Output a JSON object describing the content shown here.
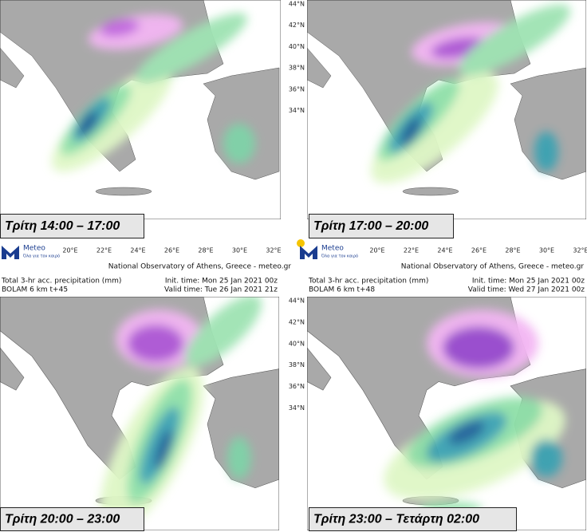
{
  "panels": [
    {
      "label": "Τρίτη 14:00 – 17:00",
      "lon_labels": [
        "20°E",
        "22°E",
        "24°E",
        "26°E",
        "28°E",
        "30°E",
        "32°E"
      ],
      "logo": {
        "name": "Meteo",
        "tagline": "Όλα για τον καιρό"
      },
      "source": "National Observatory of Athens, Greece - meteo.gr"
    },
    {
      "label": "Τρίτη 17:00 – 20:00",
      "lat_labels": [
        "44°N",
        "42°N",
        "40°N",
        "38°N",
        "36°N",
        "34°N"
      ],
      "lon_labels": [
        "20°E",
        "22°E",
        "24°E",
        "26°E",
        "28°E",
        "30°E",
        "32°E"
      ],
      "logo": {
        "name": "Meteo",
        "tagline": "Όλα για τον καιρό"
      },
      "source": "National Observatory of Athens, Greece - meteo.gr"
    },
    {
      "label": "Τρίτη 20:00 – 23:00",
      "header": {
        "product": "Total 3-hr acc. precipitation (mm)",
        "model": "BOLAM 6 km t+45",
        "init": "Init. time: Mon 25 Jan 2021 00z",
        "valid": "Valid time: Tue 26 Jan 2021 21z"
      }
    },
    {
      "label": "Τρίτη 23:00 –  Τετάρτη 02:00",
      "lat_labels": [
        "44°N",
        "42°N",
        "40°N",
        "38°N",
        "36°N",
        "34°N"
      ],
      "header": {
        "product": "Total 3-hr acc. precipitation (mm)",
        "model": "BOLAM 6 km t+48",
        "init": "Init. time: Mon 25 Jan 2021 00z",
        "valid": "Valid time: Wed 27 Jan 2021 00z"
      }
    }
  ]
}
